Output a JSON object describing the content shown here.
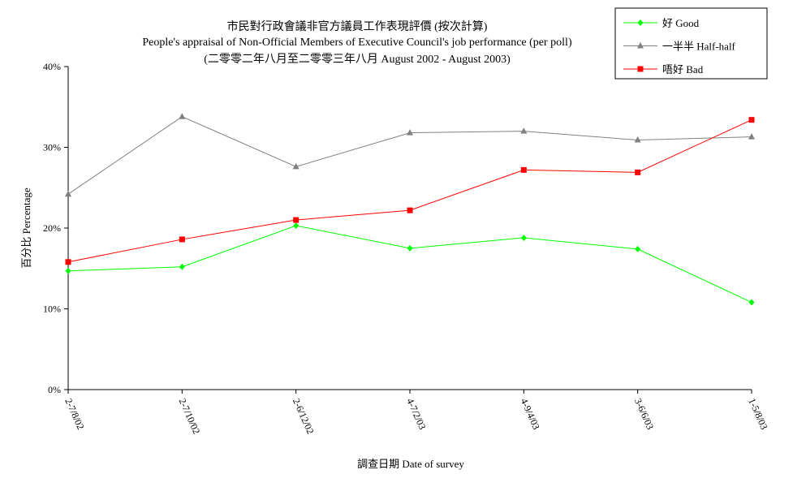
{
  "chart_data": {
    "type": "line",
    "title": "市民對行政會議非官方議員工作表現評價 (按次計算)",
    "subtitle": "People's appraisal of Non-Official Members of Executive Council's job performance (per poll)",
    "subtitle2": "(二零零二年八月至二零零三年八月 August 2002 - August 2003)",
    "xlabel": "調查日期 Date of survey",
    "ylabel": "百分比 Percentage",
    "categories": [
      "2-7/8/02",
      "2-7/10/02",
      "2-6/12/02",
      "4-7/2/03",
      "4-9/4/03",
      "3-6/6/03",
      "1-5/8/03"
    ],
    "ylim": [
      0,
      40
    ],
    "yticks": [
      0,
      10,
      20,
      30,
      40
    ],
    "ytick_labels": [
      "0%",
      "10%",
      "20%",
      "30%",
      "40%"
    ],
    "grid": false,
    "legend_position": "top-right",
    "series": [
      {
        "name": "好 Good",
        "color": "#00ff00",
        "marker": "diamond",
        "values": [
          14.7,
          15.2,
          20.3,
          17.5,
          18.8,
          17.4,
          10.8
        ]
      },
      {
        "name": "一半半 Half-half",
        "color": "#808080",
        "marker": "triangle",
        "values": [
          24.2,
          33.8,
          27.6,
          31.8,
          32.0,
          30.9,
          31.3
        ]
      },
      {
        "name": "唔好 Bad",
        "color": "#ff0000",
        "marker": "square",
        "values": [
          15.8,
          18.6,
          21.0,
          22.2,
          27.2,
          26.9,
          33.4
        ]
      }
    ]
  }
}
